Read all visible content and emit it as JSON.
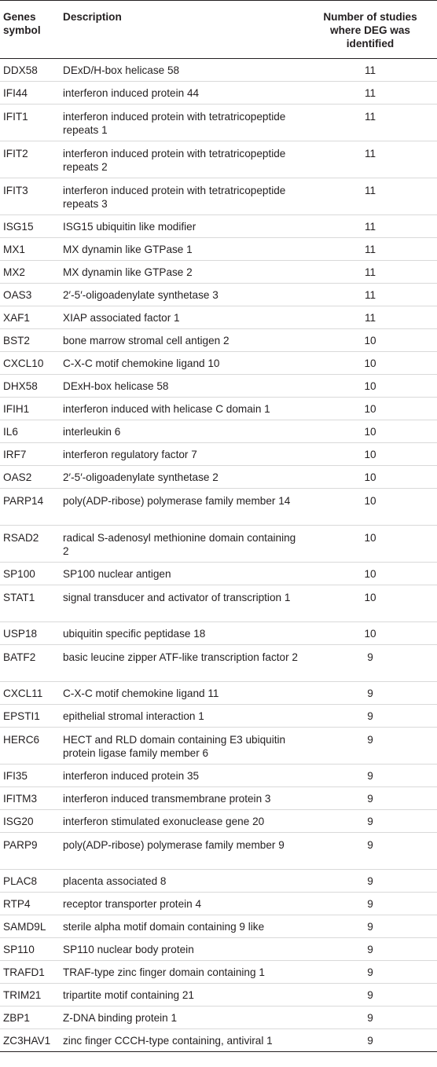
{
  "table": {
    "headers": {
      "symbol": "Genes symbol",
      "description": "Description",
      "count": "Number of studies where DEG was identified"
    },
    "rows": [
      {
        "symbol": "DDX58",
        "description": "DExD/H-box helicase 58",
        "count": "11"
      },
      {
        "symbol": "IFI44",
        "description": "interferon induced protein 44",
        "count": "11"
      },
      {
        "symbol": "IFIT1",
        "description": "interferon induced protein with tetratricopeptide repeats 1",
        "count": "11"
      },
      {
        "symbol": "IFIT2",
        "description": "interferon induced protein with tetratricopeptide repeats 2",
        "count": "11"
      },
      {
        "symbol": "IFIT3",
        "description": "interferon induced protein with tetratricopeptide repeats 3",
        "count": "11"
      },
      {
        "symbol": "ISG15",
        "description": "ISG15 ubiquitin like modifier",
        "count": "11"
      },
      {
        "symbol": "MX1",
        "description": "MX dynamin like GTPase 1",
        "count": "11"
      },
      {
        "symbol": "MX2",
        "description": "MX dynamin like GTPase 2",
        "count": "11"
      },
      {
        "symbol": "OAS3",
        "description": "2′-5′-oligoadenylate synthetase 3",
        "count": "11"
      },
      {
        "symbol": "XAF1",
        "description": "XIAP associated factor 1",
        "count": "11"
      },
      {
        "symbol": "BST2",
        "description": "bone marrow stromal cell antigen 2",
        "count": "10"
      },
      {
        "symbol": "CXCL10",
        "description": "C-X-C motif chemokine ligand 10",
        "count": "10"
      },
      {
        "symbol": "DHX58",
        "description": "DExH-box helicase 58",
        "count": "10"
      },
      {
        "symbol": "IFIH1",
        "description": "interferon induced with helicase C domain 1",
        "count": "10"
      },
      {
        "symbol": "IL6",
        "description": "interleukin 6",
        "count": "10"
      },
      {
        "symbol": "IRF7",
        "description": "interferon regulatory factor 7",
        "count": "10"
      },
      {
        "symbol": "OAS2",
        "description": "2′-5′-oligoadenylate synthetase 2",
        "count": "10"
      },
      {
        "symbol": "PARP14",
        "description": "poly(ADP-ribose) polymerase family member 14",
        "count": "10"
      },
      {
        "symbol": "RSAD2",
        "description": "radical S-adenosyl methionine domain containing 2",
        "count": "10"
      },
      {
        "symbol": "SP100",
        "description": "SP100 nuclear antigen",
        "count": "10"
      },
      {
        "symbol": "STAT1",
        "description": "signal transducer and activator of transcription 1",
        "count": "10"
      },
      {
        "symbol": "USP18",
        "description": "ubiquitin specific peptidase 18",
        "count": "10"
      },
      {
        "symbol": "BATF2",
        "description": "basic leucine zipper ATF-like transcription factor 2",
        "count": "9"
      },
      {
        "symbol": "CXCL11",
        "description": "C-X-C motif chemokine ligand 11",
        "count": "9"
      },
      {
        "symbol": "EPSTI1",
        "description": "epithelial stromal interaction 1",
        "count": "9"
      },
      {
        "symbol": "HERC6",
        "description": "HECT and RLD domain containing E3 ubiquitin protein ligase family member 6",
        "count": "9"
      },
      {
        "symbol": "IFI35",
        "description": "interferon induced protein 35",
        "count": "9"
      },
      {
        "symbol": "IFITM3",
        "description": "interferon induced transmembrane protein 3",
        "count": "9"
      },
      {
        "symbol": "ISG20",
        "description": "interferon stimulated exonuclease gene 20",
        "count": "9"
      },
      {
        "symbol": "PARP9",
        "description": "poly(ADP-ribose) polymerase family member 9",
        "count": "9"
      },
      {
        "symbol": "PLAC8",
        "description": "placenta associated 8",
        "count": "9"
      },
      {
        "symbol": "RTP4",
        "description": "receptor transporter protein 4",
        "count": "9"
      },
      {
        "symbol": "SAMD9L",
        "description": "sterile alpha motif domain containing 9 like",
        "count": "9"
      },
      {
        "symbol": "SP110",
        "description": "SP110 nuclear body protein",
        "count": "9"
      },
      {
        "symbol": "TRAFD1",
        "description": "TRAF-type zinc finger domain containing 1",
        "count": "9"
      },
      {
        "symbol": "TRIM21",
        "description": "tripartite motif containing 21",
        "count": "9"
      },
      {
        "symbol": "ZBP1",
        "description": "Z-DNA binding protein 1",
        "count": "9"
      },
      {
        "symbol": "ZC3HAV1",
        "description": "zinc finger CCCH-type containing, antiviral 1",
        "count": "9"
      }
    ]
  }
}
